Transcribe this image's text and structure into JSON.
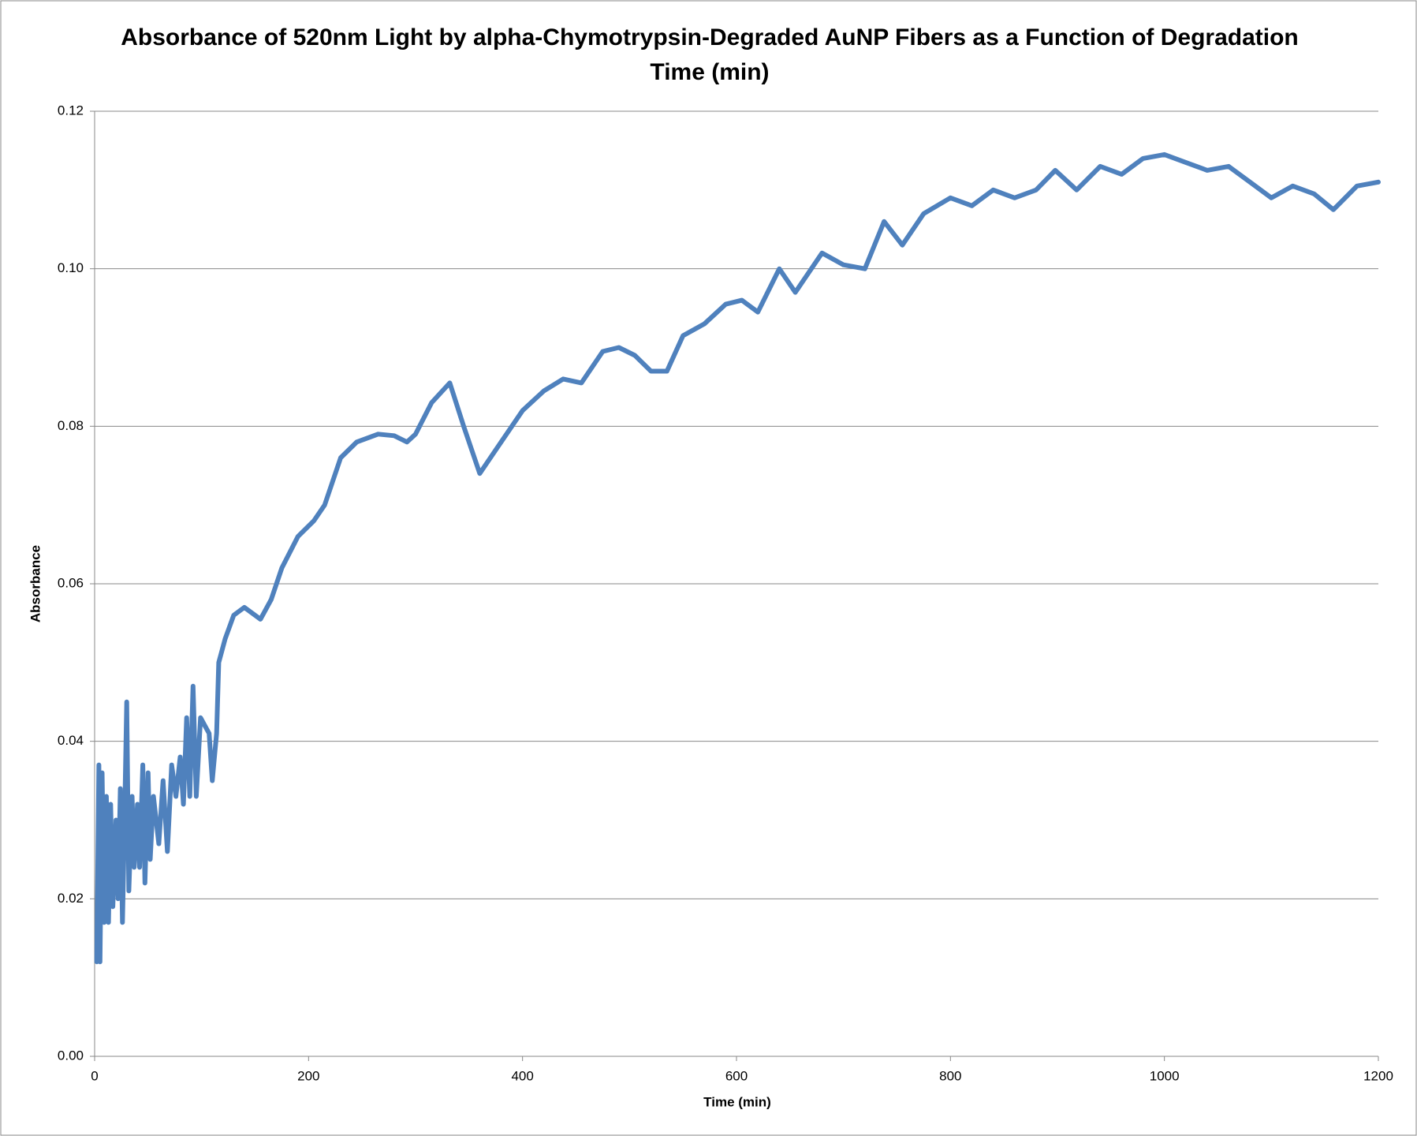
{
  "chart_data": {
    "type": "line",
    "title": "Absorbance of 520nm Light by alpha-Chymotrypsin-Degraded AuNP Fibers as a Function of Degradation Time (min)",
    "x_label": "Time (min)",
    "y_label": "Absorbance",
    "xlim": [
      0,
      1200
    ],
    "xticks": [
      0,
      200,
      400,
      600,
      800,
      1000,
      1200
    ],
    "ylim": [
      0,
      0.12
    ],
    "yticks": [
      {
        "value": 0,
        "label": "0.00"
      },
      {
        "value": 0.02,
        "label": "0.02"
      },
      {
        "value": 0.04,
        "label": "0.04"
      },
      {
        "value": 0.06,
        "label": "0.06"
      },
      {
        "value": 0.08,
        "label": "0.08"
      },
      {
        "value": 0.1,
        "label": "0.10"
      },
      {
        "value": 0.12,
        "label": "0.12"
      }
    ],
    "grid": true,
    "x": [
      2,
      4,
      5,
      7,
      9,
      11,
      13,
      15,
      17,
      20,
      22,
      24,
      26,
      28,
      30,
      32,
      35,
      37,
      40,
      42,
      45,
      47,
      50,
      52,
      55,
      60,
      64,
      68,
      72,
      76,
      80,
      83,
      86,
      89,
      92,
      95,
      99,
      103,
      107,
      110,
      114,
      116,
      122,
      130,
      140,
      155,
      165,
      175,
      190,
      205,
      215,
      230,
      245,
      265,
      280,
      292,
      300,
      315,
      332,
      345,
      360,
      380,
      400,
      420,
      438,
      455,
      475,
      490,
      505,
      520,
      535,
      550,
      570,
      590,
      605,
      620,
      640,
      655,
      680,
      700,
      720,
      738,
      755,
      775,
      800,
      820,
      840,
      860,
      880,
      898,
      918,
      940,
      960,
      980,
      1000,
      1020,
      1040,
      1060,
      1080,
      1100,
      1120,
      1140,
      1158,
      1180,
      1200
    ],
    "series": [
      {
        "name": "Absorbance",
        "color": "#4f81bd",
        "values": [
          0.012,
          0.037,
          0.012,
          0.036,
          0.017,
          0.033,
          0.017,
          0.032,
          0.019,
          0.03,
          0.02,
          0.034,
          0.017,
          0.03,
          0.045,
          0.021,
          0.033,
          0.024,
          0.032,
          0.024,
          0.037,
          0.022,
          0.036,
          0.025,
          0.033,
          0.027,
          0.035,
          0.026,
          0.037,
          0.033,
          0.038,
          0.032,
          0.043,
          0.033,
          0.047,
          0.033,
          0.043,
          0.042,
          0.041,
          0.035,
          0.041,
          0.05,
          0.053,
          0.056,
          0.057,
          0.0555,
          0.058,
          0.062,
          0.066,
          0.068,
          0.07,
          0.076,
          0.078,
          0.079,
          0.0788,
          0.078,
          0.079,
          0.083,
          0.0855,
          0.08,
          0.074,
          0.078,
          0.082,
          0.0845,
          0.086,
          0.0855,
          0.0895,
          0.09,
          0.089,
          0.087,
          0.087,
          0.0915,
          0.093,
          0.0955,
          0.096,
          0.0945,
          0.1,
          0.097,
          0.102,
          0.1005,
          0.1,
          0.106,
          0.103,
          0.107,
          0.109,
          0.108,
          0.11,
          0.109,
          0.11,
          0.1125,
          0.11,
          0.113,
          0.112,
          0.114,
          0.1145,
          0.1135,
          0.1125,
          0.113,
          0.111,
          0.109,
          0.1105,
          0.1095,
          0.1075,
          0.1105,
          0.111
        ]
      }
    ]
  }
}
